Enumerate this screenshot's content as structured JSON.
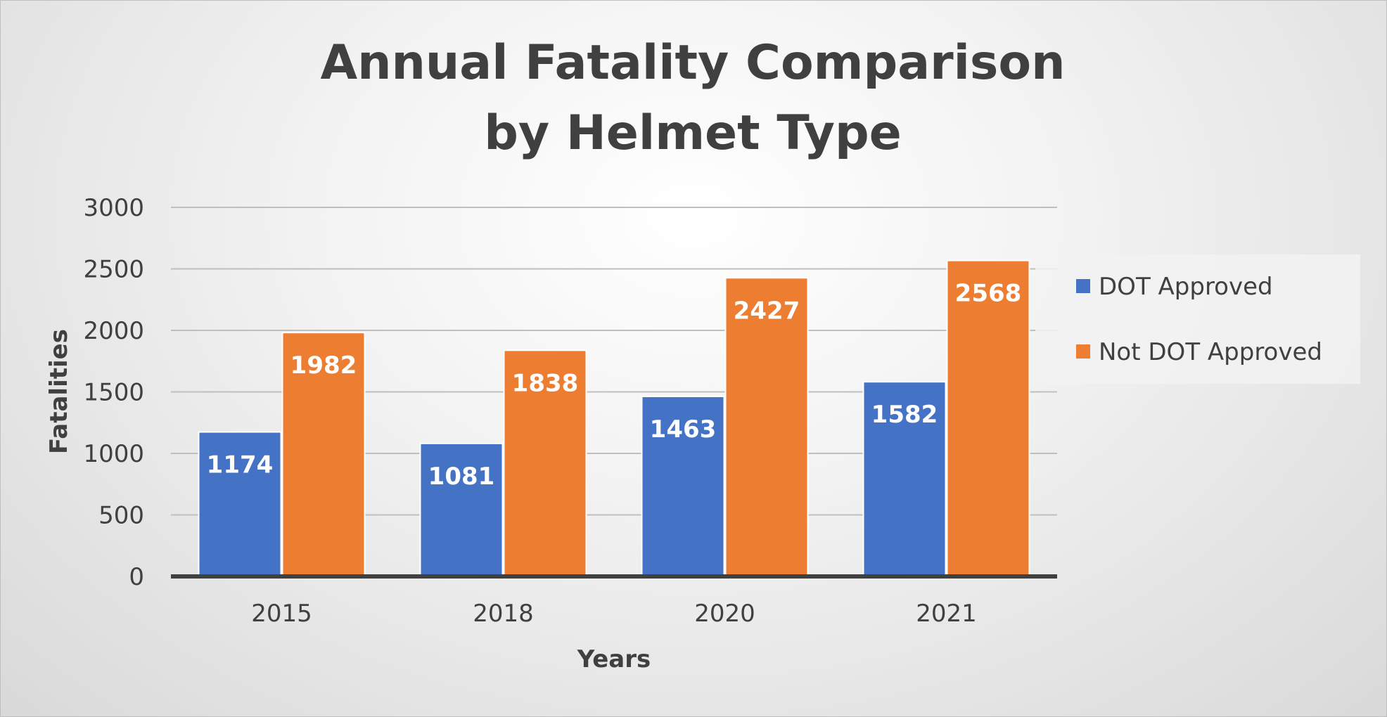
{
  "chart_data": {
    "type": "bar",
    "title_lines": [
      "Annual Fatality Comparison",
      "by Helmet Type"
    ],
    "xlabel": "Years",
    "ylabel": "Fatalities",
    "categories": [
      "2015",
      "2018",
      "2020",
      "2021"
    ],
    "series": [
      {
        "name": "DOT Approved",
        "color": "#4472c4",
        "values": [
          1174,
          1081,
          1463,
          1582
        ]
      },
      {
        "name": "Not DOT Approved",
        "color": "#ed7d31",
        "values": [
          1982,
          1838,
          2427,
          2568
        ]
      }
    ],
    "ylim": [
      0,
      3000
    ],
    "yticks": [
      "0",
      "500",
      "1000",
      "1500",
      "2000",
      "2500",
      "3000"
    ],
    "grid": true,
    "legend_position": "right",
    "data_labels": true
  }
}
